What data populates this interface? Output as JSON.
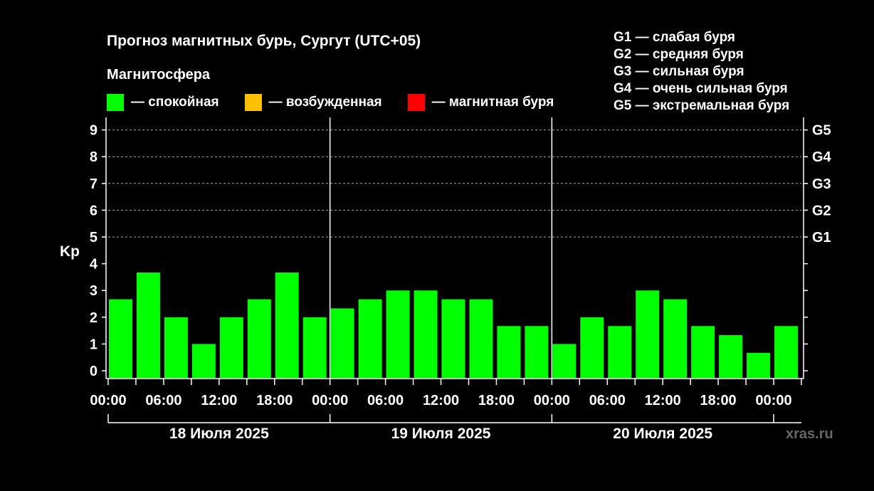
{
  "title": "Прогноз магнитных бурь, Сургут (UTC+05)",
  "subtitle": "Магнитосфера",
  "legend": [
    {
      "label": "— спокойная",
      "color": "#00ff00"
    },
    {
      "label": "— возбужденная",
      "color": "#ffc000"
    },
    {
      "label": "— магнитная буря",
      "color": "#ff0000"
    }
  ],
  "storm_legend": [
    "G1 — слабая буря",
    "G2 — средняя буря",
    "G3 — сильная буря",
    "G4 — очень сильная буря",
    "G5 — экстремальная буря"
  ],
  "watermark": "xras.ru",
  "chart_data": {
    "type": "bar",
    "title": "Прогноз магнитных бурь, Сургут (UTC+05)",
    "ylabel": "Kp",
    "ylim": [
      0,
      9
    ],
    "y_ticks": [
      "0",
      "1",
      "2",
      "3",
      "4",
      "5",
      "6",
      "7",
      "8",
      "9"
    ],
    "right_ticks": [
      {
        "kp": 5,
        "label": "G1"
      },
      {
        "kp": 6,
        "label": "G2"
      },
      {
        "kp": 7,
        "label": "G3"
      },
      {
        "kp": 8,
        "label": "G4"
      },
      {
        "kp": 9,
        "label": "G5"
      }
    ],
    "x_tick_labels": [
      "00:00",
      "06:00",
      "12:00",
      "18:00",
      "00:00",
      "06:00",
      "12:00",
      "18:00",
      "00:00",
      "06:00",
      "12:00",
      "18:00",
      "00:00"
    ],
    "days": [
      "18 Июля 2025",
      "19 Июля 2025",
      "20 Июля 2025"
    ],
    "interval_hours": 3,
    "grid": "dashed horizontal lines at Kp 5–9",
    "bar_color": "#00ff00",
    "values": [
      2.67,
      3.67,
      2.0,
      1.0,
      2.0,
      2.67,
      3.67,
      2.0,
      2.33,
      2.67,
      3.0,
      3.0,
      2.67,
      2.67,
      1.67,
      1.67,
      1.0,
      2.0,
      1.67,
      3.0,
      2.67,
      1.67,
      1.33,
      0.67,
      1.67
    ]
  }
}
